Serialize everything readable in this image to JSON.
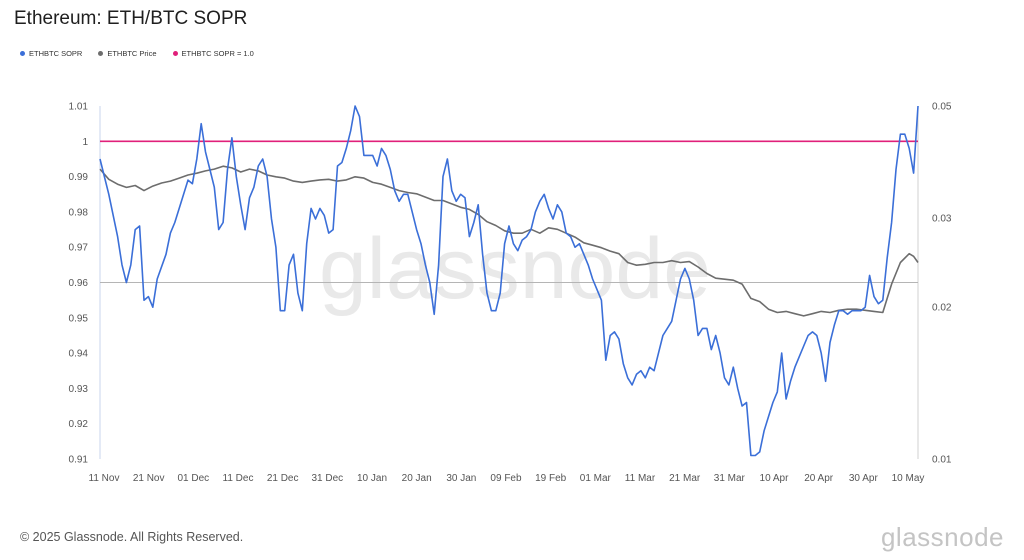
{
  "title": "Ethereum: ETH/BTC SOPR",
  "legend": [
    {
      "label": "ETHBTC SOPR",
      "color": "#3b6fd8"
    },
    {
      "label": "ETHBTC Price",
      "color": "#6d6d6d"
    },
    {
      "label": "ETHBTC SOPR = 1.0",
      "color": "#e0207a"
    }
  ],
  "watermark": "glassnode",
  "footer": "© 2025 Glassnode. All Rights Reserved.",
  "brand": "glassnode",
  "chart_data": {
    "type": "line",
    "title": "Ethereum: ETH/BTC SOPR",
    "x_tick_labels": [
      "11 Nov",
      "21 Nov",
      "01 Dec",
      "11 Dec",
      "21 Dec",
      "31 Dec",
      "10 Jan",
      "20 Jan",
      "30 Jan",
      "09 Feb",
      "19 Feb",
      "01 Mar",
      "11 Mar",
      "21 Mar",
      "31 Mar",
      "10 Apr",
      "20 Apr",
      "30 Apr",
      "10 May"
    ],
    "y_left_ticks": [
      "1.01",
      "1",
      "0.99",
      "0.98",
      "0.97",
      "0.96",
      "0.95",
      "0.94",
      "0.93",
      "0.92",
      "0.91"
    ],
    "y_left_range": [
      0.91,
      1.01
    ],
    "y_right_ticks": [
      "0.05",
      "0.03",
      "0.02",
      "0.01"
    ],
    "y_right_range": [
      0.01,
      0.05
    ],
    "y_right_scale": "log",
    "grid": false,
    "reference_lines": [
      {
        "name": "ETHBTC SOPR = 1.0",
        "value": 1.0
      },
      {
        "value": 0.96
      }
    ],
    "series": [
      {
        "name": "ETHBTC SOPR",
        "axis": "left",
        "color": "#3b6fd8",
        "points": [
          [
            0,
            0.995
          ],
          [
            2,
            0.985
          ],
          [
            4,
            0.973
          ],
          [
            5,
            0.965
          ],
          [
            6,
            0.96
          ],
          [
            7,
            0.965
          ],
          [
            8,
            0.975
          ],
          [
            9,
            0.976
          ],
          [
            10,
            0.955
          ],
          [
            11,
            0.956
          ],
          [
            12,
            0.953
          ],
          [
            13,
            0.961
          ],
          [
            15,
            0.968
          ],
          [
            16,
            0.974
          ],
          [
            17,
            0.977
          ],
          [
            19,
            0.985
          ],
          [
            20,
            0.989
          ],
          [
            21,
            0.988
          ],
          [
            22,
            0.995
          ],
          [
            23,
            1.005
          ],
          [
            24,
            0.997
          ],
          [
            25,
            0.992
          ],
          [
            26,
            0.987
          ],
          [
            27,
            0.975
          ],
          [
            28,
            0.977
          ],
          [
            29,
            0.992
          ],
          [
            30,
            1.001
          ],
          [
            31,
            0.99
          ],
          [
            32,
            0.982
          ],
          [
            33,
            0.975
          ],
          [
            34,
            0.984
          ],
          [
            35,
            0.987
          ],
          [
            36,
            0.993
          ],
          [
            37,
            0.995
          ],
          [
            38,
            0.99
          ],
          [
            39,
            0.978
          ],
          [
            40,
            0.97
          ],
          [
            41,
            0.952
          ],
          [
            42,
            0.952
          ],
          [
            43,
            0.965
          ],
          [
            44,
            0.968
          ],
          [
            45,
            0.957
          ],
          [
            46,
            0.952
          ],
          [
            47,
            0.971
          ],
          [
            48,
            0.981
          ],
          [
            49,
            0.978
          ],
          [
            50,
            0.981
          ],
          [
            51,
            0.979
          ],
          [
            52,
            0.974
          ],
          [
            53,
            0.975
          ],
          [
            54,
            0.993
          ],
          [
            55,
            0.994
          ],
          [
            56,
            0.998
          ],
          [
            57,
            1.003
          ],
          [
            58,
            1.01
          ],
          [
            59,
            1.007
          ],
          [
            60,
            0.996
          ],
          [
            61,
            0.996
          ],
          [
            62,
            0.996
          ],
          [
            63,
            0.993
          ],
          [
            64,
            0.998
          ],
          [
            65,
            0.996
          ],
          [
            66,
            0.992
          ],
          [
            67,
            0.986
          ],
          [
            68,
            0.983
          ],
          [
            69,
            0.985
          ],
          [
            70,
            0.985
          ],
          [
            71,
            0.98
          ],
          [
            72,
            0.975
          ],
          [
            73,
            0.971
          ],
          [
            74,
            0.965
          ],
          [
            75,
            0.96
          ],
          [
            76,
            0.951
          ],
          [
            77,
            0.965
          ],
          [
            78,
            0.99
          ],
          [
            79,
            0.995
          ],
          [
            80,
            0.986
          ],
          [
            81,
            0.983
          ],
          [
            82,
            0.985
          ],
          [
            83,
            0.984
          ],
          [
            84,
            0.973
          ],
          [
            85,
            0.977
          ],
          [
            86,
            0.982
          ],
          [
            87,
            0.968
          ],
          [
            88,
            0.957
          ],
          [
            89,
            0.952
          ],
          [
            90,
            0.952
          ],
          [
            91,
            0.957
          ],
          [
            92,
            0.971
          ],
          [
            93,
            0.976
          ],
          [
            94,
            0.971
          ],
          [
            95,
            0.969
          ],
          [
            96,
            0.972
          ],
          [
            97,
            0.973
          ],
          [
            98,
            0.975
          ],
          [
            99,
            0.98
          ],
          [
            100,
            0.983
          ],
          [
            101,
            0.985
          ],
          [
            102,
            0.981
          ],
          [
            103,
            0.978
          ],
          [
            104,
            0.982
          ],
          [
            105,
            0.98
          ],
          [
            106,
            0.974
          ],
          [
            107,
            0.973
          ],
          [
            108,
            0.97
          ],
          [
            109,
            0.971
          ],
          [
            110,
            0.968
          ],
          [
            111,
            0.965
          ],
          [
            112,
            0.961
          ],
          [
            113,
            0.958
          ],
          [
            114,
            0.955
          ],
          [
            115,
            0.938
          ],
          [
            116,
            0.945
          ],
          [
            117,
            0.946
          ],
          [
            118,
            0.944
          ],
          [
            119,
            0.937
          ],
          [
            120,
            0.933
          ],
          [
            121,
            0.931
          ],
          [
            122,
            0.934
          ],
          [
            123,
            0.935
          ],
          [
            124,
            0.933
          ],
          [
            125,
            0.936
          ],
          [
            126,
            0.935
          ],
          [
            127,
            0.94
          ],
          [
            128,
            0.945
          ],
          [
            129,
            0.947
          ],
          [
            130,
            0.949
          ],
          [
            131,
            0.955
          ],
          [
            132,
            0.961
          ],
          [
            133,
            0.964
          ],
          [
            134,
            0.961
          ],
          [
            135,
            0.955
          ],
          [
            136,
            0.945
          ],
          [
            137,
            0.947
          ],
          [
            138,
            0.947
          ],
          [
            139,
            0.941
          ],
          [
            140,
            0.945
          ],
          [
            141,
            0.94
          ],
          [
            142,
            0.933
          ],
          [
            143,
            0.931
          ],
          [
            144,
            0.936
          ],
          [
            145,
            0.93
          ],
          [
            146,
            0.925
          ],
          [
            147,
            0.926
          ],
          [
            148,
            0.911
          ],
          [
            149,
            0.911
          ],
          [
            150,
            0.912
          ],
          [
            151,
            0.918
          ],
          [
            152,
            0.922
          ],
          [
            153,
            0.926
          ],
          [
            154,
            0.929
          ],
          [
            155,
            0.94
          ],
          [
            156,
            0.927
          ],
          [
            157,
            0.932
          ],
          [
            158,
            0.936
          ],
          [
            159,
            0.939
          ],
          [
            160,
            0.942
          ],
          [
            161,
            0.945
          ],
          [
            162,
            0.946
          ],
          [
            163,
            0.945
          ],
          [
            164,
            0.94
          ],
          [
            165,
            0.932
          ],
          [
            166,
            0.943
          ],
          [
            167,
            0.948
          ],
          [
            168,
            0.952
          ],
          [
            169,
            0.952
          ],
          [
            170,
            0.951
          ],
          [
            171,
            0.952
          ],
          [
            172,
            0.952
          ],
          [
            173,
            0.952
          ],
          [
            174,
            0.953
          ],
          [
            175,
            0.962
          ],
          [
            176,
            0.956
          ],
          [
            177,
            0.954
          ],
          [
            178,
            0.955
          ],
          [
            179,
            0.967
          ],
          [
            180,
            0.977
          ],
          [
            181,
            0.992
          ],
          [
            182,
            1.002
          ],
          [
            183,
            1.002
          ],
          [
            184,
            0.998
          ],
          [
            185,
            0.991
          ],
          [
            186,
            1.01
          ]
        ]
      },
      {
        "name": "ETHBTC Price",
        "axis": "right",
        "color": "#6d6d6d",
        "points": [
          [
            0,
            0.0375
          ],
          [
            2,
            0.0358
          ],
          [
            4,
            0.035
          ],
          [
            6,
            0.0345
          ],
          [
            8,
            0.0348
          ],
          [
            10,
            0.034
          ],
          [
            12,
            0.0347
          ],
          [
            14,
            0.0352
          ],
          [
            16,
            0.0355
          ],
          [
            18,
            0.036
          ],
          [
            20,
            0.0365
          ],
          [
            22,
            0.0368
          ],
          [
            24,
            0.0372
          ],
          [
            26,
            0.0375
          ],
          [
            28,
            0.038
          ],
          [
            30,
            0.0377
          ],
          [
            32,
            0.037
          ],
          [
            34,
            0.0375
          ],
          [
            36,
            0.0372
          ],
          [
            38,
            0.0365
          ],
          [
            40,
            0.0362
          ],
          [
            42,
            0.036
          ],
          [
            44,
            0.0355
          ],
          [
            46,
            0.0353
          ],
          [
            48,
            0.0355
          ],
          [
            50,
            0.0357
          ],
          [
            52,
            0.0358
          ],
          [
            54,
            0.0355
          ],
          [
            56,
            0.0357
          ],
          [
            58,
            0.0362
          ],
          [
            60,
            0.036
          ],
          [
            62,
            0.0353
          ],
          [
            64,
            0.035
          ],
          [
            66,
            0.0345
          ],
          [
            68,
            0.034
          ],
          [
            70,
            0.0337
          ],
          [
            72,
            0.0335
          ],
          [
            74,
            0.033
          ],
          [
            76,
            0.0325
          ],
          [
            78,
            0.0325
          ],
          [
            80,
            0.032
          ],
          [
            82,
            0.0315
          ],
          [
            84,
            0.0312
          ],
          [
            86,
            0.0305
          ],
          [
            88,
            0.0295
          ],
          [
            90,
            0.029
          ],
          [
            92,
            0.0283
          ],
          [
            94,
            0.028
          ],
          [
            96,
            0.028
          ],
          [
            98,
            0.0285
          ],
          [
            100,
            0.028
          ],
          [
            102,
            0.0287
          ],
          [
            104,
            0.0285
          ],
          [
            106,
            0.028
          ],
          [
            108,
            0.0275
          ],
          [
            110,
            0.0268
          ],
          [
            112,
            0.0265
          ],
          [
            114,
            0.0262
          ],
          [
            116,
            0.0258
          ],
          [
            118,
            0.0255
          ],
          [
            120,
            0.0245
          ],
          [
            122,
            0.0242
          ],
          [
            124,
            0.0243
          ],
          [
            126,
            0.0245
          ],
          [
            128,
            0.0245
          ],
          [
            130,
            0.0247
          ],
          [
            132,
            0.0245
          ],
          [
            134,
            0.0246
          ],
          [
            136,
            0.024
          ],
          [
            138,
            0.0233
          ],
          [
            140,
            0.0228
          ],
          [
            142,
            0.0227
          ],
          [
            144,
            0.0226
          ],
          [
            146,
            0.0222
          ],
          [
            148,
            0.0208
          ],
          [
            150,
            0.0205
          ],
          [
            152,
            0.0198
          ],
          [
            154,
            0.0195
          ],
          [
            156,
            0.0196
          ],
          [
            158,
            0.0194
          ],
          [
            160,
            0.0192
          ],
          [
            162,
            0.0194
          ],
          [
            164,
            0.0196
          ],
          [
            166,
            0.0195
          ],
          [
            168,
            0.0197
          ],
          [
            170,
            0.0198
          ],
          [
            172,
            0.0198
          ],
          [
            174,
            0.0197
          ],
          [
            176,
            0.0196
          ],
          [
            178,
            0.0195
          ],
          [
            180,
            0.0222
          ],
          [
            182,
            0.0245
          ],
          [
            184,
            0.0255
          ],
          [
            185,
            0.0252
          ],
          [
            186,
            0.0245
          ]
        ]
      }
    ]
  }
}
